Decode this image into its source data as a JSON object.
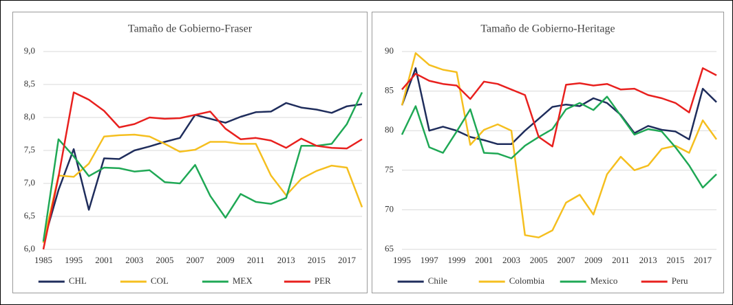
{
  "chart_data": [
    {
      "type": "line",
      "title": "Tamaño de Gobierno-Fraser",
      "categories": [
        "1985",
        null,
        "1995",
        null,
        "2001",
        null,
        "2003",
        null,
        "2005",
        null,
        "2007",
        null,
        "2009",
        null,
        "2011",
        null,
        "2013",
        null,
        "2015",
        null,
        "2017",
        null
      ],
      "ylim": [
        6.0,
        9.0
      ],
      "yticks": [
        {
          "value": 6.0,
          "label": "6,0"
        },
        {
          "value": 6.5,
          "label": "6,5"
        },
        {
          "value": 7.0,
          "label": "7,0"
        },
        {
          "value": 7.5,
          "label": "7,5"
        },
        {
          "value": 8.0,
          "label": "8,0"
        },
        {
          "value": 8.5,
          "label": "8,5"
        },
        {
          "value": 9.0,
          "label": "9,0"
        }
      ],
      "grid": true,
      "legend": "bottom",
      "series": [
        {
          "name": "CHL",
          "color": "#1f2d5c",
          "values": [
            6.1,
            6.9,
            7.52,
            6.6,
            7.38,
            7.37,
            7.5,
            7.56,
            7.63,
            7.69,
            8.04,
            7.98,
            7.92,
            8.01,
            8.08,
            8.09,
            8.22,
            8.15,
            8.12,
            8.07,
            8.17,
            8.2
          ]
        },
        {
          "name": "COL",
          "color": "#f5bf1f",
          "values": [
            6.1,
            7.12,
            7.1,
            7.3,
            7.71,
            7.73,
            7.74,
            7.71,
            7.6,
            7.48,
            7.51,
            7.63,
            7.63,
            7.6,
            7.6,
            7.12,
            6.82,
            7.07,
            7.19,
            7.27,
            7.24,
            6.64
          ]
        },
        {
          "name": "MEX",
          "color": "#1fa855",
          "values": [
            6.12,
            7.67,
            7.41,
            7.11,
            7.24,
            7.23,
            7.18,
            7.2,
            7.02,
            7.0,
            7.28,
            6.81,
            6.48,
            6.84,
            6.72,
            6.69,
            6.78,
            7.57,
            7.57,
            7.6,
            7.9,
            8.38
          ]
        },
        {
          "name": "PER",
          "color": "#e8201e",
          "values": [
            6.0,
            7.1,
            8.38,
            8.27,
            8.1,
            7.85,
            7.9,
            8.0,
            7.98,
            7.99,
            8.04,
            8.09,
            7.83,
            7.67,
            7.69,
            7.65,
            7.54,
            7.68,
            7.57,
            7.54,
            7.53,
            7.67
          ]
        }
      ]
    },
    {
      "type": "line",
      "title": "Tamaño de Gobierno-Heritage",
      "categories": [
        "1995",
        null,
        "1997",
        null,
        "1999",
        null,
        "2001",
        null,
        "2003",
        null,
        "2005",
        null,
        "2007",
        null,
        "2009",
        null,
        "2011",
        null,
        "2013",
        null,
        "2015",
        null,
        "2017",
        null
      ],
      "ylim": [
        65,
        90
      ],
      "yticks": [
        65,
        70,
        75,
        80,
        85,
        90
      ],
      "grid": true,
      "legend": "bottom",
      "series": [
        {
          "name": "Chile",
          "color": "#1f2d5c",
          "values": [
            83.2,
            87.9,
            80,
            80.5,
            80,
            79.2,
            78.8,
            78.3,
            78.3,
            80,
            81.5,
            83,
            83.3,
            83.1,
            84.1,
            83.5,
            82,
            79.7,
            80.6,
            80.1,
            79.9,
            78.9,
            85.3,
            83.6
          ]
        },
        {
          "name": "Colombia",
          "color": "#f5bf1f",
          "values": [
            83.2,
            89.8,
            88.3,
            87.7,
            87.4,
            78.2,
            80.1,
            80.8,
            80,
            66.8,
            66.5,
            67.4,
            70.9,
            71.9,
            69.4,
            74.5,
            76.7,
            75,
            75.6,
            77.7,
            78.1,
            77.2,
            81.3,
            78.9
          ]
        },
        {
          "name": "Mexico",
          "color": "#1fa855",
          "values": [
            79.5,
            83.1,
            77.9,
            77.2,
            79.9,
            82.7,
            77.2,
            77.1,
            76.5,
            78.1,
            79.2,
            80.2,
            82.7,
            83.5,
            82.6,
            84.3,
            81.9,
            79.5,
            80.2,
            79.9,
            77.9,
            75.6,
            72.8,
            74.5
          ]
        },
        {
          "name": "Peru",
          "color": "#e8201e",
          "values": [
            85.2,
            87.2,
            86.3,
            85.9,
            85.7,
            84,
            86.2,
            85.9,
            85.2,
            84.5,
            79.2,
            78,
            85.8,
            86,
            85.7,
            85.9,
            85.2,
            85.3,
            84.5,
            84.1,
            83.5,
            82.3,
            87.9,
            87
          ]
        }
      ]
    }
  ]
}
